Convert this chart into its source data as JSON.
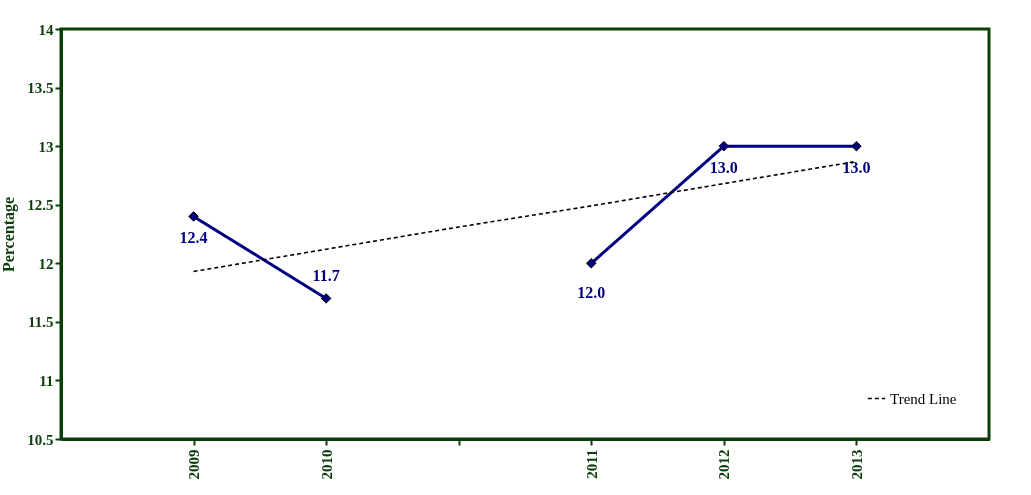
{
  "chart_data": {
    "type": "line",
    "ylabel": "Percentage",
    "categories": [
      "2009",
      "2010",
      null,
      "2011",
      "2012",
      "2013"
    ],
    "series": [
      {
        "color": "#000080",
        "values": [
          12.4,
          11.7,
          null,
          12.0,
          13.0,
          13.0
        ],
        "value_labels": [
          "12.4",
          "11.7",
          null,
          "12.0",
          "13.0",
          "13.0"
        ],
        "marker": "diamond",
        "line_style": "solid"
      },
      {
        "name": "Trend Line",
        "type": "line",
        "color": "#000000",
        "values": [
          11.93,
          12.12,
          12.31,
          12.49,
          12.68,
          12.87
        ],
        "marker": "none",
        "line_style": "dashed"
      }
    ],
    "ylim": [
      10.5,
      14
    ],
    "yticks": [
      10.5,
      11,
      11.5,
      12,
      12.5,
      13,
      13.5,
      14
    ],
    "grid": false,
    "legend": "bottom right"
  }
}
